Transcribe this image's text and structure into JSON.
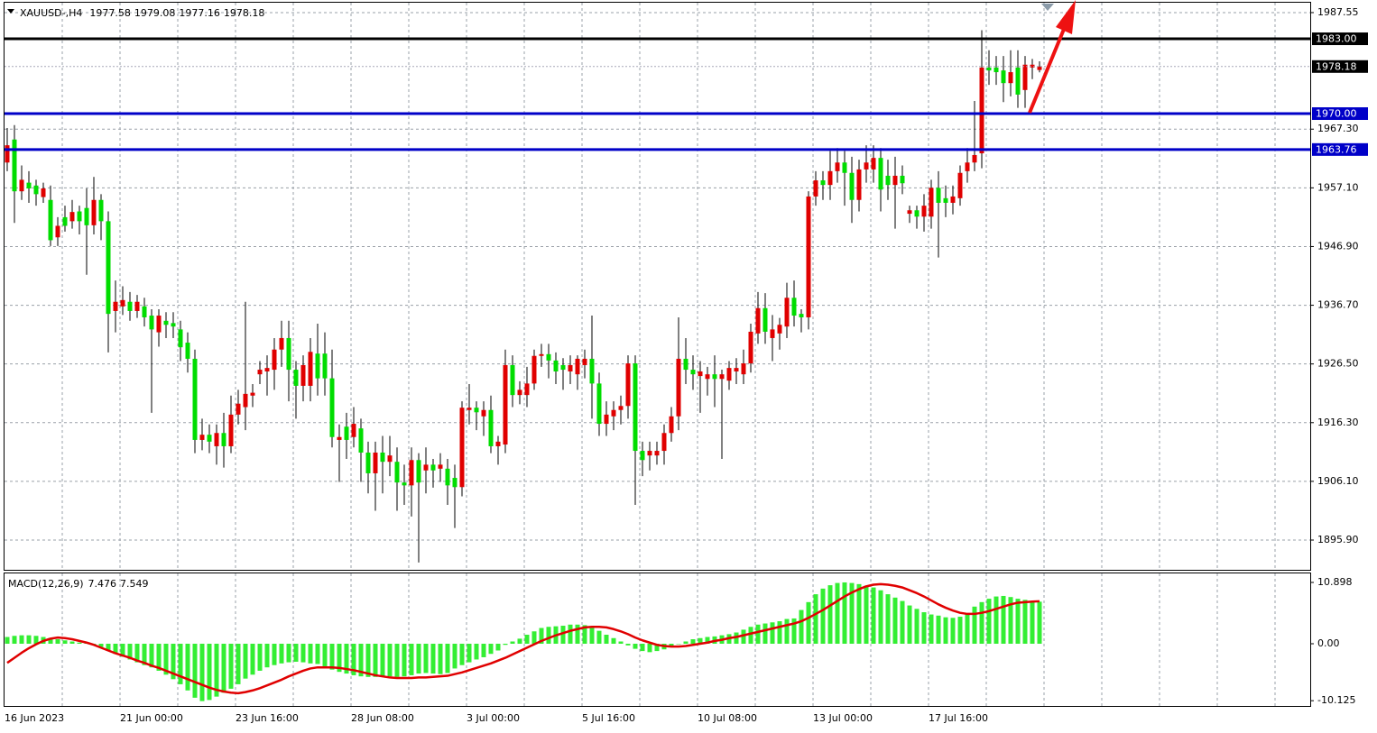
{
  "chart_data": [
    {
      "type": "candlestick",
      "title": "XAUUSD-,H4",
      "categories": [
        "16 Jun 2023",
        null,
        null,
        null,
        null,
        null,
        null,
        null,
        null,
        null,
        null,
        null,
        null,
        null,
        null,
        null,
        "21 Jun 00:00",
        null,
        null,
        null,
        null,
        null,
        null,
        null,
        null,
        null,
        null,
        null,
        null,
        null,
        null,
        null,
        "23 Jun 16:00",
        null,
        null,
        null,
        null,
        null,
        null,
        null,
        null,
        null,
        null,
        null,
        null,
        null,
        null,
        null,
        "28 Jun 08:00",
        null,
        null,
        null,
        null,
        null,
        null,
        null,
        null,
        null,
        null,
        null,
        null,
        null,
        null,
        null,
        "3 Jul 00:00",
        null,
        null,
        null,
        null,
        null,
        null,
        null,
        null,
        null,
        null,
        null,
        null,
        null,
        null,
        null,
        "5 Jul 16:00",
        null,
        null,
        null,
        null,
        null,
        null,
        null,
        null,
        null,
        null,
        null,
        null,
        null,
        null,
        null,
        "10 Jul 08:00",
        null,
        null,
        null,
        null,
        null,
        null,
        null,
        null,
        null,
        null,
        null,
        null,
        null,
        null,
        null,
        "13 Jul 00:00",
        null,
        null,
        null,
        null,
        null,
        null,
        null,
        null,
        null,
        null,
        null,
        null,
        null,
        null,
        null,
        "17 Jul 16:00",
        null,
        null,
        null,
        null,
        null,
        null,
        null,
        null,
        null,
        null,
        null,
        null,
        null,
        null,
        null
      ],
      "open": [
        1961.5,
        1965.5,
        1956.5,
        1958,
        1957.5,
        1955.5,
        1955,
        1948.5,
        1952,
        1951.3,
        1953,
        1953.6,
        1950.6,
        1955,
        1951.3,
        1935.7,
        1936.5,
        1937.3,
        1935.7,
        1936.5,
        1934.9,
        1932,
        1934,
        1933.6,
        1932.5,
        1930.2,
        1927.4,
        1913.3,
        1914.2,
        1912.2,
        1914.5,
        1912.2,
        1917.7,
        1919,
        1921,
        1924.7,
        1925.2,
        1925.5,
        1929,
        1931,
        1925.5,
        1922.7,
        1922.7,
        1928.3,
        1928.3,
        1924,
        1913.3,
        1915.6,
        1913.8,
        1915.3,
        1911.1,
        1907.5,
        1911.1,
        1909.5,
        1909.5,
        1905.9,
        1905.4,
        1909.8,
        1908,
        1909,
        1908.3,
        1908.3,
        1906.7,
        1905.1,
        1918.5,
        1918.9,
        1917.4,
        1918.5,
        1912.2,
        1912.5,
        1926.3,
        1921.1,
        1921.1,
        1923.1,
        1927.9,
        1928.2,
        1927.1,
        1926.3,
        1925.2,
        1924.7,
        1926.3,
        1927.4,
        1923.1,
        1916.1,
        1917.4,
        1918.5,
        1919.2,
        1926.6,
        1911.4,
        1910.6,
        1910.6,
        1911.4,
        1914.5,
        1917.4,
        1927.4,
        1925.5,
        1924.4,
        1923.9,
        1924.7,
        1923.9,
        1923.6,
        1925.2,
        1924.7,
        1926.6,
        1931.8,
        1936.2,
        1931,
        1931.8,
        1933,
        1938,
        1935.2,
        1934.6,
        1955.6,
        1958.4,
        1957.6,
        1960,
        1961.5,
        1959.7,
        1955,
        1960.3,
        1960.3,
        1962.3,
        1959.2,
        1957.6,
        1959.2,
        1952.6,
        1953.2,
        1952.1,
        1952.1,
        1957.1,
        1955.3,
        1954.5,
        1955.3,
        1960,
        1961.5,
        1963.1,
        1978,
        1978,
        1977.5,
        1975.3,
        1978,
        1974.1,
        1978,
        1977.58
      ],
      "high": [
        1967.5,
        1968,
        1961,
        1960,
        1958.5,
        1958,
        1957.5,
        1952,
        1954,
        1955,
        1954,
        1957,
        1959,
        1956,
        1953,
        1941,
        1940,
        1939,
        1938.5,
        1938,
        1936,
        1936,
        1935.5,
        1935.5,
        1934,
        1932,
        1929,
        1917,
        1916,
        1916,
        1918,
        1921,
        1922,
        1937.3,
        1923,
        1927,
        1928,
        1931,
        1934,
        1934,
        1927,
        1928,
        1931,
        1933.5,
        1932,
        1929,
        1916,
        1918,
        1919,
        1917,
        1913,
        1913,
        1914,
        1914,
        1912,
        1909,
        1912,
        1911,
        1912,
        1910,
        1911,
        1910,
        1909,
        1920,
        1923,
        1920,
        1920,
        1921,
        1914,
        1929,
        1928,
        1923.5,
        1926,
        1929,
        1930,
        1930,
        1928.5,
        1927.5,
        1928,
        1928,
        1929,
        1934.9,
        1925,
        1920,
        1920,
        1921,
        1928,
        1928,
        1913,
        1913,
        1913,
        1916,
        1919,
        1934.6,
        1931,
        1928,
        1927,
        1926,
        1928,
        1925.5,
        1927,
        1927.5,
        1929,
        1933.5,
        1939,
        1938.8,
        1935,
        1934.5,
        1940.6,
        1941,
        1936,
        1956.5,
        1960,
        1960,
        1963.5,
        1964,
        1963.5,
        1962.5,
        1962,
        1964.5,
        1964.5,
        1964,
        1962,
        1962.5,
        1961,
        1954,
        1954,
        1956,
        1958.5,
        1960,
        1957.5,
        1957.5,
        1961,
        1964,
        1972.2,
        1984.5,
        1981,
        1980,
        1980,
        1981,
        1981,
        1980,
        1979.5,
        1979.08
      ],
      "low": [
        1960,
        1951,
        1955,
        1954.5,
        1954,
        1954.5,
        1947,
        1947,
        1949.5,
        1950,
        1949,
        1942,
        1949,
        1948,
        1928.5,
        1932,
        1935,
        1934,
        1934.5,
        1933,
        1918,
        1929.5,
        1931,
        1931,
        1927,
        1925,
        1911,
        1911.5,
        1911,
        1909,
        1908.5,
        1911,
        1916,
        1915,
        1919,
        1923,
        1921,
        1922,
        1926,
        1920,
        1917,
        1920,
        1920,
        1921,
        1921,
        1912,
        1906,
        1910,
        1912,
        1906,
        1904,
        1901,
        1904,
        1907,
        1901,
        1902,
        1900,
        1892,
        1904,
        1905,
        1906,
        1902,
        1898,
        1903.5,
        1916,
        1915,
        1914,
        1911,
        1909,
        1911,
        1919,
        1919.5,
        1919,
        1922,
        1926,
        1924,
        1923,
        1922,
        1923,
        1922,
        1924,
        1917,
        1914,
        1914,
        1915,
        1916,
        1917,
        1902,
        1907,
        1908,
        1909,
        1909,
        1913,
        1915,
        1923,
        1922,
        1918,
        1921,
        1919,
        1910,
        1922,
        1923,
        1923,
        1925,
        1930,
        1930,
        1927,
        1929,
        1931,
        1933,
        1932,
        1932.5,
        1954,
        1955,
        1955,
        1958,
        1954,
        1951,
        1953,
        1958,
        1958,
        1953,
        1955,
        1950,
        1956,
        1951,
        1950,
        1949.5,
        1950,
        1945,
        1952,
        1952.5,
        1954,
        1958,
        1960,
        1960.5,
        1975,
        1975,
        1972,
        1973,
        1971,
        1971,
        1976,
        1977.16
      ],
      "close": [
        1964.5,
        1956.5,
        1958.5,
        1957,
        1956,
        1957,
        1948,
        1950.5,
        1950.5,
        1952.9,
        1951.3,
        1950.6,
        1955,
        1951.3,
        1935.2,
        1937.3,
        1937.6,
        1935.7,
        1937.3,
        1934.6,
        1932.5,
        1934.9,
        1933.3,
        1933,
        1929.4,
        1927.4,
        1913.3,
        1914.2,
        1913,
        1914.5,
        1912.2,
        1917.7,
        1919.6,
        1921.3,
        1921.5,
        1925.5,
        1925.8,
        1929,
        1931,
        1925.5,
        1922.7,
        1926.3,
        1928.6,
        1924,
        1924,
        1913.8,
        1913.8,
        1913.3,
        1916.1,
        1911.1,
        1907.5,
        1911.1,
        1909.5,
        1910.6,
        1905.9,
        1905.4,
        1909.8,
        1905.9,
        1909,
        1908,
        1909,
        1905.4,
        1905.1,
        1918.9,
        1918.9,
        1918.1,
        1918.5,
        1912.2,
        1913,
        1926.3,
        1921.1,
        1922,
        1923.1,
        1927.9,
        1928.2,
        1927.1,
        1925.2,
        1925.5,
        1926.3,
        1927.4,
        1927.4,
        1923.1,
        1916.1,
        1917.7,
        1918.5,
        1919.2,
        1926.6,
        1911.4,
        1909.8,
        1911.4,
        1911.4,
        1914.5,
        1917.4,
        1927.4,
        1925.5,
        1924.7,
        1925.2,
        1924.7,
        1923.9,
        1924.7,
        1925.8,
        1925.8,
        1926.6,
        1932.1,
        1936.2,
        1932.1,
        1932.5,
        1933.3,
        1938,
        1934.9,
        1934.6,
        1955.6,
        1958.4,
        1957.6,
        1960,
        1961.5,
        1959.7,
        1955,
        1960.3,
        1961.5,
        1962.3,
        1956.8,
        1957.6,
        1959.2,
        1957.9,
        1953.2,
        1952.1,
        1954,
        1957.1,
        1954.5,
        1954.5,
        1955.6,
        1959.7,
        1961.5,
        1962.8,
        1978,
        1977.5,
        1977.2,
        1975.3,
        1977.2,
        1973.3,
        1978.5,
        1978.5,
        1978.18
      ],
      "up_color": "#e00000",
      "down_color": "#00dd00",
      "wick_color": "#000000",
      "ylim": [
        1890.73,
        1989.27
      ],
      "yticks": [
        1987.55,
        {
          "value": 1967.3,
          "label": "1967.30"
        },
        {
          "value": 1957.1,
          "label": "1957.10"
        },
        {
          "value": 1946.9,
          "label": "1946.90"
        },
        {
          "value": 1936.7,
          "label": "1936.70"
        },
        {
          "value": 1926.5,
          "label": "1926.50"
        },
        {
          "value": 1916.3,
          "label": "1916.30"
        },
        {
          "value": 1906.1,
          "label": "1906.10"
        },
        {
          "value": 1895.9,
          "label": "1895.90"
        }
      ],
      "grid": true,
      "levels": [
        {
          "value": 1983,
          "label": "1983.00",
          "color": "#000000"
        },
        {
          "value": 1970,
          "label": "1970.00",
          "color": "#0000c8"
        },
        {
          "value": 1963.76,
          "color": "#0000c8"
        }
      ],
      "price_line_color": "#a8a8b8"
    },
    {
      "type": "macd",
      "title": "MACD(12,26,9)",
      "histogram": {
        "color": "#33ee33",
        "values": [
          1.2,
          1.4,
          1.5,
          1.5,
          1.4,
          1.2,
          1.0,
          0.8,
          0.6,
          0.4,
          0.2,
          0.1,
          -0.1,
          -0.6,
          -1.2,
          -1.8,
          -2.3,
          -2.8,
          -3.3,
          -3.8,
          -4.2,
          -4.8,
          -5.5,
          -6.3,
          -7.2,
          -8.3,
          -9.6,
          -10.2,
          -10.0,
          -9.4,
          -8.7,
          -8.0,
          -7.2,
          -6.2,
          -5.5,
          -4.8,
          -4.2,
          -3.8,
          -3.5,
          -3.3,
          -3.2,
          -3.3,
          -3.5,
          -3.6,
          -4.0,
          -4.6,
          -5.0,
          -5.3,
          -5.6,
          -5.8,
          -5.9,
          -5.9,
          -5.8,
          -5.8,
          -5.9,
          -5.8,
          -5.6,
          -5.3,
          -5.2,
          -5.3,
          -5.4,
          -5.2,
          -4.4,
          -3.8,
          -3.3,
          -2.8,
          -2.4,
          -1.8,
          -1.2,
          -0.2,
          0.4,
          0.9,
          1.6,
          2.2,
          2.8,
          3.0,
          3.1,
          3.2,
          3.4,
          3.4,
          3.3,
          2.8,
          2.3,
          1.6,
          1.0,
          0.4,
          -0.3,
          -0.9,
          -1.3,
          -1.5,
          -1.3,
          -1.0,
          -0.5,
          0.0,
          0.4,
          0.8,
          1.0,
          1.2,
          1.3,
          1.5,
          1.7,
          2.0,
          2.5,
          3.0,
          3.4,
          3.6,
          3.8,
          4.0,
          4.4,
          4.5,
          6.0,
          7.4,
          8.8,
          9.8,
          10.4,
          10.8,
          10.9,
          10.8,
          10.6,
          10.3,
          10.0,
          9.5,
          8.8,
          8.2,
          7.6,
          6.8,
          6.2,
          5.6,
          5.2,
          5.0,
          4.7,
          4.6,
          4.8,
          5.4,
          6.6,
          7.4,
          8.0,
          8.4,
          8.5,
          8.3,
          8.0,
          7.8,
          7.6,
          7.476
        ]
      },
      "signal": {
        "color": "#e00000",
        "values": [
          -3.4,
          -2.5,
          -1.6,
          -0.8,
          -0.1,
          0.5,
          0.9,
          1.1,
          1.0,
          0.8,
          0.5,
          0.2,
          -0.2,
          -0.7,
          -1.2,
          -1.7,
          -2.1,
          -2.5,
          -3.0,
          -3.4,
          -3.9,
          -4.3,
          -4.8,
          -5.3,
          -5.8,
          -6.3,
          -6.8,
          -7.3,
          -7.8,
          -8.2,
          -8.5,
          -8.7,
          -8.8,
          -8.6,
          -8.3,
          -7.9,
          -7.4,
          -6.9,
          -6.4,
          -5.8,
          -5.3,
          -4.8,
          -4.4,
          -4.2,
          -4.2,
          -4.2,
          -4.3,
          -4.5,
          -4.7,
          -5.0,
          -5.3,
          -5.6,
          -5.8,
          -6.0,
          -6.1,
          -6.1,
          -6.1,
          -6.0,
          -6.0,
          -5.9,
          -5.8,
          -5.7,
          -5.4,
          -5.1,
          -4.7,
          -4.3,
          -3.9,
          -3.5,
          -3.0,
          -2.5,
          -1.9,
          -1.3,
          -0.7,
          -0.1,
          0.5,
          1.0,
          1.5,
          1.9,
          2.3,
          2.6,
          2.9,
          3.0,
          3.0,
          2.9,
          2.6,
          2.2,
          1.7,
          1.1,
          0.6,
          0.2,
          -0.2,
          -0.4,
          -0.5,
          -0.5,
          -0.4,
          -0.2,
          0.0,
          0.2,
          0.5,
          0.7,
          1.0,
          1.2,
          1.5,
          1.8,
          2.1,
          2.4,
          2.7,
          3.0,
          3.3,
          3.6,
          4.0,
          4.6,
          5.3,
          6.0,
          6.8,
          7.6,
          8.4,
          9.1,
          9.7,
          10.2,
          10.5,
          10.6,
          10.5,
          10.3,
          10.0,
          9.5,
          9.0,
          8.4,
          7.7,
          7.0,
          6.4,
          5.9,
          5.5,
          5.3,
          5.3,
          5.5,
          5.8,
          6.2,
          6.6,
          7.0,
          7.3,
          7.4,
          7.5,
          7.549
        ]
      },
      "ylim": [
        -11.06,
        12.5
      ],
      "yticks": [
        10.898,
        {
          "value": 0,
          "label": "0.00"
        },
        -10.125
      ]
    }
  ]
}
